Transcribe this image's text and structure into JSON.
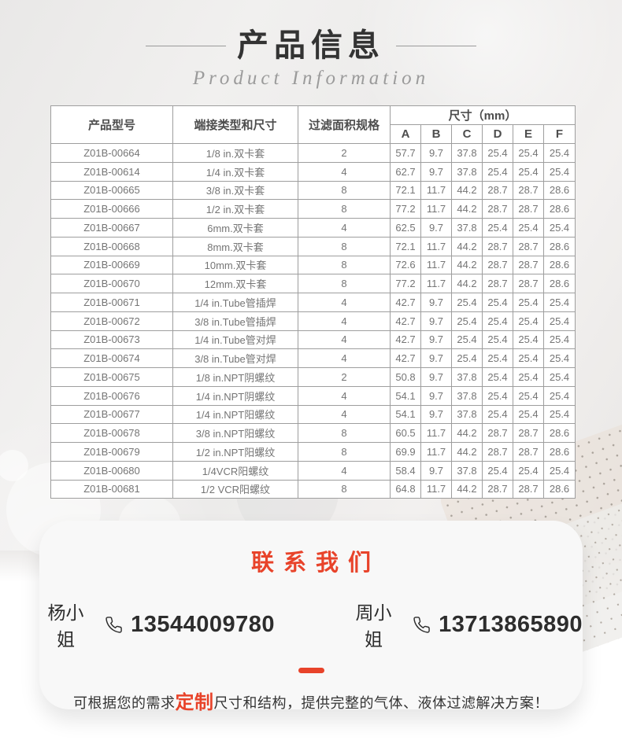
{
  "header": {
    "title": "产品信息",
    "subtitle": "Product Information"
  },
  "table": {
    "columns": {
      "model": "产品型号",
      "termination": "端接类型和尺寸",
      "filter_area": "过滤面积规格",
      "dimensions": "尺寸（mm）",
      "dims": [
        "A",
        "B",
        "C",
        "D",
        "E",
        "F"
      ]
    },
    "rows": [
      {
        "model": "Z01B-00664",
        "termination": "1/8 in.双卡套",
        "filter_area": "2",
        "dims": [
          "57.7",
          "9.7",
          "37.8",
          "25.4",
          "25.4",
          "25.4"
        ]
      },
      {
        "model": "Z01B-00614",
        "termination": "1/4 in.双卡套",
        "filter_area": "4",
        "dims": [
          "62.7",
          "9.7",
          "37.8",
          "25.4",
          "25.4",
          "25.4"
        ]
      },
      {
        "model": "Z01B-00665",
        "termination": "3/8 in.双卡套",
        "filter_area": "8",
        "dims": [
          "72.1",
          "11.7",
          "44.2",
          "28.7",
          "28.7",
          "28.6"
        ]
      },
      {
        "model": "Z01B-00666",
        "termination": "1/2 in.双卡套",
        "filter_area": "8",
        "dims": [
          "77.2",
          "11.7",
          "44.2",
          "28.7",
          "28.7",
          "28.6"
        ]
      },
      {
        "model": "Z01B-00667",
        "termination": "6mm.双卡套",
        "filter_area": "4",
        "dims": [
          "62.5",
          "9.7",
          "37.8",
          "25.4",
          "25.4",
          "25.4"
        ]
      },
      {
        "model": "Z01B-00668",
        "termination": "8mm.双卡套",
        "filter_area": "8",
        "dims": [
          "72.1",
          "11.7",
          "44.2",
          "28.7",
          "28.7",
          "28.6"
        ]
      },
      {
        "model": "Z01B-00669",
        "termination": "10mm.双卡套",
        "filter_area": "8",
        "dims": [
          "72.6",
          "11.7",
          "44.2",
          "28.7",
          "28.7",
          "28.6"
        ]
      },
      {
        "model": "Z01B-00670",
        "termination": "12mm.双卡套",
        "filter_area": "8",
        "dims": [
          "77.2",
          "11.7",
          "44.2",
          "28.7",
          "28.7",
          "28.6"
        ]
      },
      {
        "model": "Z01B-00671",
        "termination": "1/4 in.Tube管插焊",
        "filter_area": "4",
        "dims": [
          "42.7",
          "9.7",
          "25.4",
          "25.4",
          "25.4",
          "25.4"
        ]
      },
      {
        "model": "Z01B-00672",
        "termination": "3/8 in.Tube管插焊",
        "filter_area": "4",
        "dims": [
          "42.7",
          "9.7",
          "25.4",
          "25.4",
          "25.4",
          "25.4"
        ]
      },
      {
        "model": "Z01B-00673",
        "termination": "1/4 in.Tube管对焊",
        "filter_area": "4",
        "dims": [
          "42.7",
          "9.7",
          "25.4",
          "25.4",
          "25.4",
          "25.4"
        ]
      },
      {
        "model": "Z01B-00674",
        "termination": "3/8 in.Tube管对焊",
        "filter_area": "4",
        "dims": [
          "42.7",
          "9.7",
          "25.4",
          "25.4",
          "25.4",
          "25.4"
        ]
      },
      {
        "model": "Z01B-00675",
        "termination": "1/8 in.NPT阴螺纹",
        "filter_area": "2",
        "dims": [
          "50.8",
          "9.7",
          "37.8",
          "25.4",
          "25.4",
          "25.4"
        ]
      },
      {
        "model": "Z01B-00676",
        "termination": "1/4 in.NPT阴螺纹",
        "filter_area": "4",
        "dims": [
          "54.1",
          "9.7",
          "37.8",
          "25.4",
          "25.4",
          "25.4"
        ]
      },
      {
        "model": "Z01B-00677",
        "termination": "1/4 in.NPT阳螺纹",
        "filter_area": "4",
        "dims": [
          "54.1",
          "9.7",
          "37.8",
          "25.4",
          "25.4",
          "25.4"
        ]
      },
      {
        "model": "Z01B-00678",
        "termination": "3/8 in.NPT阳螺纹",
        "filter_area": "8",
        "dims": [
          "60.5",
          "11.7",
          "44.2",
          "28.7",
          "28.7",
          "28.6"
        ]
      },
      {
        "model": "Z01B-00679",
        "termination": "1/2 in.NPT阳螺纹",
        "filter_area": "8",
        "dims": [
          "69.9",
          "11.7",
          "44.2",
          "28.7",
          "28.7",
          "28.6"
        ]
      },
      {
        "model": "Z01B-00680",
        "termination": "1/4VCR阳螺纹",
        "filter_area": "4",
        "dims": [
          "58.4",
          "9.7",
          "37.8",
          "25.4",
          "25.4",
          "25.4"
        ]
      },
      {
        "model": "Z01B-00681",
        "termination": "1/2 VCR阳螺纹",
        "filter_area": "8",
        "dims": [
          "64.8",
          "11.7",
          "44.2",
          "28.7",
          "28.7",
          "28.6"
        ]
      }
    ]
  },
  "contact": {
    "title": "联系我们",
    "contacts": [
      {
        "name": "杨小姐",
        "phone": "13544009780"
      },
      {
        "name": "周小姐",
        "phone": "13713865890"
      }
    ],
    "note_prefix": "可根据您的需求",
    "note_highlight": "定制",
    "note_suffix": "尺寸和结构，提供完整的气体、液体过滤解决方案！"
  },
  "colors": {
    "accent_red": "#e8432a",
    "title_text": "#333333",
    "table_border": "#9e9e9e",
    "table_text": "#757575",
    "page_bg_top": "#ecebea",
    "card_bg": "#f8f8f8"
  }
}
